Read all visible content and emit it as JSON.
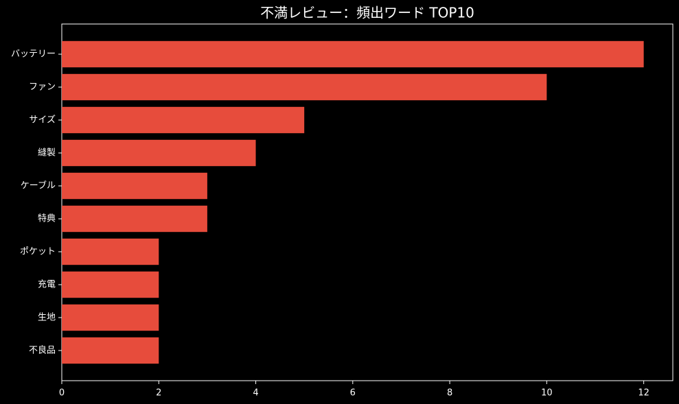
{
  "chart_data": {
    "type": "barh",
    "title": "不満レビュー：頻出ワード TOP10",
    "categories": [
      "バッテリー",
      "ファン",
      "サイズ",
      "縫製",
      "ケーブル",
      "特典",
      "ポケット",
      "充電",
      "生地",
      "不良品"
    ],
    "values": [
      12,
      10,
      5,
      4,
      3,
      3,
      2,
      2,
      2,
      2
    ],
    "color": "#e74c3c",
    "xlim": [
      0,
      12.6
    ],
    "xticks": [
      0,
      2,
      4,
      6,
      8,
      10,
      12
    ],
    "grid": false
  }
}
